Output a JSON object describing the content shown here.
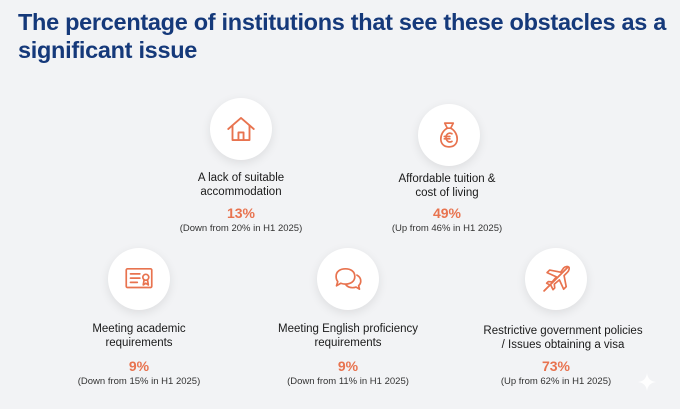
{
  "title": "The percentage of institutions that see these obstacles as a significant issue",
  "accent_color": "#e8734f",
  "title_color": "#15397a",
  "items": [
    {
      "icon": "house-icon",
      "label_line1": "A lack of suitable",
      "label_line2": "accommodation",
      "value": "13%",
      "note": "(Down from 20% in H1 2025)"
    },
    {
      "icon": "money-bag-euro-icon",
      "label_line1": "Affordable tuition &",
      "label_line2": "cost of living",
      "value": "49%",
      "note": "(Up from 46% in H1 2025)"
    },
    {
      "icon": "certificate-icon",
      "label_line1": "Meeting academic",
      "label_line2": "requirements",
      "value": "9%",
      "note": "(Down from 15% in H1 2025)"
    },
    {
      "icon": "speech-bubbles-icon",
      "label_line1": "Meeting English proficiency",
      "label_line2": "requirements",
      "value": "9%",
      "note": "(Down from 11% in H1 2025)"
    },
    {
      "icon": "plane-crossed-icon",
      "label_line1": "Restrictive government policies",
      "label_line2": "/ Issues obtaining a visa",
      "value": "73%",
      "note": "(Up from 62% in H1 2025)"
    }
  ]
}
